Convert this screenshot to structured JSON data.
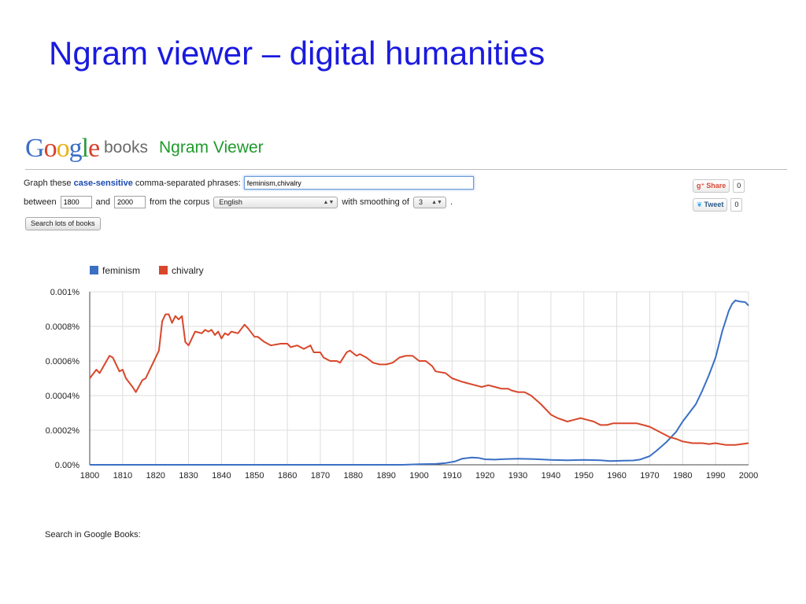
{
  "slide": {
    "title": "Ngram viewer – digital humanities"
  },
  "header": {
    "logo_letters": [
      {
        "ch": "G",
        "color": "#3b6ec8"
      },
      {
        "ch": "o",
        "color": "#d8402c"
      },
      {
        "ch": "o",
        "color": "#e8b214"
      },
      {
        "ch": "g",
        "color": "#3b6ec8"
      },
      {
        "ch": "l",
        "color": "#2e9a3e"
      },
      {
        "ch": "e",
        "color": "#d8402c"
      }
    ],
    "books_label": "books",
    "app_name": "Ngram Viewer"
  },
  "form": {
    "graph_prefix": "Graph these",
    "case_sensitive": "case-sensitive",
    "graph_suffix": "comma-separated phrases:",
    "phrases_value": "feminism,chivalry",
    "between_label": "between",
    "start_year": "1800",
    "and_label": "and",
    "end_year": "2000",
    "corpus_label": "from the corpus",
    "corpus_value": "English",
    "smoothing_label": "with smoothing of",
    "smoothing_value": "3",
    "smoothing_suffix": ".",
    "search_button": "Search lots of books"
  },
  "social": {
    "share_label": "Share",
    "share_count": "0",
    "tweet_label": "Tweet",
    "tweet_count": "0"
  },
  "footer": {
    "search_in_books": "Search in Google Books:"
  },
  "colors": {
    "feminism": "#3a6fc4",
    "chivalry": "#d8472b",
    "grid": "#dddddd",
    "axis": "#444444"
  },
  "chart_data": {
    "type": "line",
    "xlim": [
      1800,
      2000
    ],
    "ylim": [
      0,
      0.001
    ],
    "x_ticks": [
      1800,
      1810,
      1820,
      1830,
      1840,
      1850,
      1860,
      1870,
      1880,
      1890,
      1900,
      1910,
      1920,
      1930,
      1940,
      1950,
      1960,
      1970,
      1980,
      1990,
      2000
    ],
    "y_ticks": [
      {
        "value": 0,
        "label": "0.00%"
      },
      {
        "value": 0.0002,
        "label": "0.0002%"
      },
      {
        "value": 0.0004,
        "label": "0.0004%"
      },
      {
        "value": 0.0006,
        "label": "0.0006%"
      },
      {
        "value": 0.0008,
        "label": "0.0008%"
      },
      {
        "value": 0.001,
        "label": "0.001%"
      }
    ],
    "grid": true,
    "legend_position": "top-left",
    "series": [
      {
        "name": "feminism",
        "points": [
          [
            1800,
            0
          ],
          [
            1895,
            0
          ],
          [
            1900,
            3e-06
          ],
          [
            1905,
            5e-06
          ],
          [
            1908,
            1e-05
          ],
          [
            1911,
            2e-05
          ],
          [
            1913,
            3.5e-05
          ],
          [
            1916,
            4.2e-05
          ],
          [
            1918,
            4e-05
          ],
          [
            1920,
            3.2e-05
          ],
          [
            1923,
            3e-05
          ],
          [
            1926,
            3.3e-05
          ],
          [
            1930,
            3.5e-05
          ],
          [
            1935,
            3.3e-05
          ],
          [
            1940,
            2.8e-05
          ],
          [
            1945,
            2.6e-05
          ],
          [
            1950,
            2.8e-05
          ],
          [
            1955,
            2.6e-05
          ],
          [
            1958,
            2.2e-05
          ],
          [
            1962,
            2.4e-05
          ],
          [
            1965,
            2.5e-05
          ],
          [
            1967,
            3e-05
          ],
          [
            1970,
            5e-05
          ],
          [
            1972,
            8e-05
          ],
          [
            1975,
            0.00013
          ],
          [
            1978,
            0.00019
          ],
          [
            1980,
            0.00025
          ],
          [
            1982,
            0.0003
          ],
          [
            1984,
            0.00035
          ],
          [
            1986,
            0.00043
          ],
          [
            1988,
            0.00052
          ],
          [
            1990,
            0.00062
          ],
          [
            1992,
            0.00077
          ],
          [
            1994,
            0.00089
          ],
          [
            1995,
            0.00093
          ],
          [
            1996,
            0.00095
          ],
          [
            1997,
            0.000945
          ],
          [
            1999,
            0.00094
          ],
          [
            2000,
            0.00092
          ]
        ]
      },
      {
        "name": "chivalry",
        "points": [
          [
            1800,
            0.0005
          ],
          [
            1802,
            0.00055
          ],
          [
            1803,
            0.00053
          ],
          [
            1806,
            0.00063
          ],
          [
            1807,
            0.00062
          ],
          [
            1809,
            0.00054
          ],
          [
            1810,
            0.00055
          ],
          [
            1811,
            0.0005
          ],
          [
            1813,
            0.00045
          ],
          [
            1814,
            0.00042
          ],
          [
            1816,
            0.00049
          ],
          [
            1817,
            0.0005
          ],
          [
            1819,
            0.00058
          ],
          [
            1821,
            0.00066
          ],
          [
            1822,
            0.00083
          ],
          [
            1823,
            0.00087
          ],
          [
            1824,
            0.00087
          ],
          [
            1825,
            0.00082
          ],
          [
            1826,
            0.00086
          ],
          [
            1827,
            0.00084
          ],
          [
            1828,
            0.00086
          ],
          [
            1829,
            0.00071
          ],
          [
            1830,
            0.00069
          ],
          [
            1832,
            0.00077
          ],
          [
            1834,
            0.00076
          ],
          [
            1835,
            0.00078
          ],
          [
            1836,
            0.00077
          ],
          [
            1837,
            0.00078
          ],
          [
            1838,
            0.00075
          ],
          [
            1839,
            0.00077
          ],
          [
            1840,
            0.00073
          ],
          [
            1841,
            0.00076
          ],
          [
            1842,
            0.00075
          ],
          [
            1843,
            0.00077
          ],
          [
            1845,
            0.00076
          ],
          [
            1847,
            0.00081
          ],
          [
            1848,
            0.00079
          ],
          [
            1850,
            0.00074
          ],
          [
            1851,
            0.00074
          ],
          [
            1853,
            0.00071
          ],
          [
            1855,
            0.00069
          ],
          [
            1858,
            0.0007
          ],
          [
            1860,
            0.0007
          ],
          [
            1861,
            0.00068
          ],
          [
            1863,
            0.00069
          ],
          [
            1865,
            0.00067
          ],
          [
            1867,
            0.00069
          ],
          [
            1868,
            0.00065
          ],
          [
            1870,
            0.00065
          ],
          [
            1871,
            0.00062
          ],
          [
            1873,
            0.0006
          ],
          [
            1875,
            0.0006
          ],
          [
            1876,
            0.00059
          ],
          [
            1878,
            0.00065
          ],
          [
            1879,
            0.00066
          ],
          [
            1881,
            0.00063
          ],
          [
            1882,
            0.00064
          ],
          [
            1884,
            0.00062
          ],
          [
            1886,
            0.00059
          ],
          [
            1888,
            0.00058
          ],
          [
            1890,
            0.00058
          ],
          [
            1892,
            0.00059
          ],
          [
            1894,
            0.00062
          ],
          [
            1896,
            0.00063
          ],
          [
            1898,
            0.00063
          ],
          [
            1900,
            0.0006
          ],
          [
            1902,
            0.0006
          ],
          [
            1904,
            0.00057
          ],
          [
            1905,
            0.00054
          ],
          [
            1908,
            0.00053
          ],
          [
            1910,
            0.0005
          ],
          [
            1913,
            0.00048
          ],
          [
            1915,
            0.00047
          ],
          [
            1917,
            0.00046
          ],
          [
            1919,
            0.00045
          ],
          [
            1921,
            0.00046
          ],
          [
            1923,
            0.00045
          ],
          [
            1925,
            0.00044
          ],
          [
            1927,
            0.00044
          ],
          [
            1928,
            0.00043
          ],
          [
            1930,
            0.00042
          ],
          [
            1932,
            0.00042
          ],
          [
            1934,
            0.0004
          ],
          [
            1937,
            0.00035
          ],
          [
            1940,
            0.00029
          ],
          [
            1942,
            0.00027
          ],
          [
            1945,
            0.00025
          ],
          [
            1947,
            0.00026
          ],
          [
            1949,
            0.00027
          ],
          [
            1951,
            0.00026
          ],
          [
            1953,
            0.00025
          ],
          [
            1955,
            0.00023
          ],
          [
            1957,
            0.00023
          ],
          [
            1959,
            0.00024
          ],
          [
            1962,
            0.00024
          ],
          [
            1964,
            0.00024
          ],
          [
            1966,
            0.00024
          ],
          [
            1968,
            0.00023
          ],
          [
            1970,
            0.00022
          ],
          [
            1972,
            0.0002
          ],
          [
            1974,
            0.00018
          ],
          [
            1976,
            0.00016
          ],
          [
            1978,
            0.00015
          ],
          [
            1980,
            0.000135
          ],
          [
            1983,
            0.000125
          ],
          [
            1986,
            0.000125
          ],
          [
            1988,
            0.00012
          ],
          [
            1990,
            0.000125
          ],
          [
            1993,
            0.000115
          ],
          [
            1996,
            0.000115
          ],
          [
            1998,
            0.00012
          ],
          [
            2000,
            0.000125
          ]
        ]
      }
    ]
  }
}
